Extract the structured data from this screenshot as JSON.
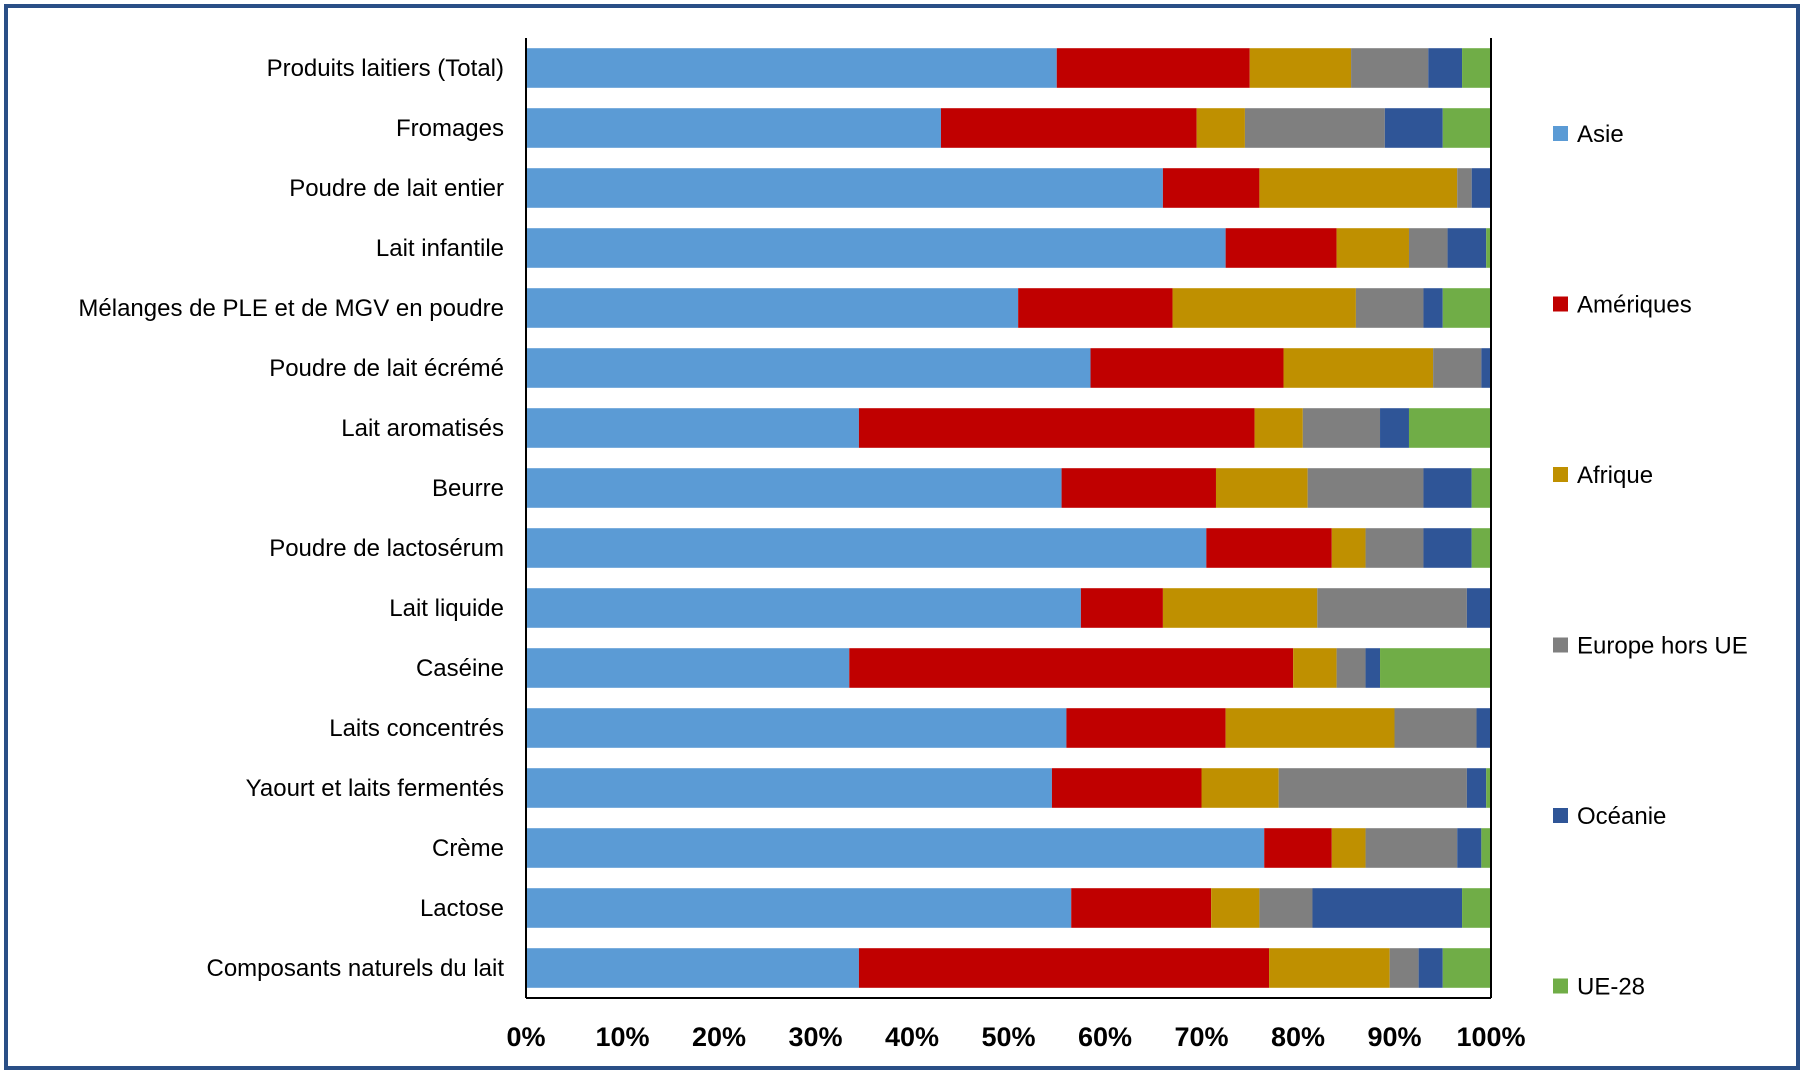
{
  "chart_data": {
    "type": "bar",
    "orientation": "horizontal",
    "stacked": "percent",
    "xlim": [
      0,
      100
    ],
    "x_ticks": [
      "0%",
      "10%",
      "20%",
      "30%",
      "40%",
      "50%",
      "60%",
      "70%",
      "80%",
      "90%",
      "100%"
    ],
    "grid": false,
    "legend_position": "right",
    "categories": [
      "Produits laitiers (Total)",
      "Fromages",
      "Poudre de lait entier",
      "Lait infantile",
      "Mélanges de PLE et de MGV en poudre",
      "Poudre de lait écrémé",
      "Lait aromatisés",
      "Beurre",
      "Poudre de lactosérum",
      "Lait liquide",
      "Caséine",
      "Laits concentrés",
      "Yaourt et laits fermentés",
      "Crème",
      "Lactose",
      "Composants naturels du lait"
    ],
    "series": [
      {
        "name": "Asie",
        "color": "#5b9bd5",
        "values": [
          55,
          43,
          66,
          72.5,
          51,
          58.5,
          34.5,
          55.5,
          70.5,
          57.5,
          33.5,
          56,
          54.5,
          76.5,
          56.5,
          34.5
        ]
      },
      {
        "name": "Amériques",
        "color": "#c00000",
        "values": [
          20,
          26.5,
          10,
          11.5,
          16,
          20,
          41,
          16,
          13,
          8.5,
          46,
          16.5,
          15.5,
          7,
          14.5,
          42.5
        ]
      },
      {
        "name": "Afrique",
        "color": "#bf9000",
        "values": [
          10.5,
          5,
          20.5,
          7.5,
          19,
          15.5,
          5,
          9.5,
          3.5,
          16,
          4.5,
          17.5,
          8,
          3.5,
          5,
          12.5
        ]
      },
      {
        "name": "Europe hors UE",
        "color": "#7f7f7f",
        "values": [
          8,
          14.5,
          1.5,
          4,
          7,
          5,
          8,
          12,
          6,
          15.5,
          3,
          8.5,
          19.5,
          9.5,
          5.5,
          3
        ]
      },
      {
        "name": "Océanie",
        "color": "#2f5597",
        "values": [
          3.5,
          6,
          2,
          4,
          2,
          1,
          3,
          5,
          5,
          2.5,
          1.5,
          1.5,
          2,
          2.5,
          15.5,
          2.5
        ]
      },
      {
        "name": "UE-28",
        "color": "#70ad47",
        "values": [
          3,
          5,
          0,
          0.5,
          5,
          0,
          8.5,
          2,
          2,
          0,
          11.5,
          0,
          0.5,
          1,
          3,
          5
        ]
      }
    ]
  }
}
